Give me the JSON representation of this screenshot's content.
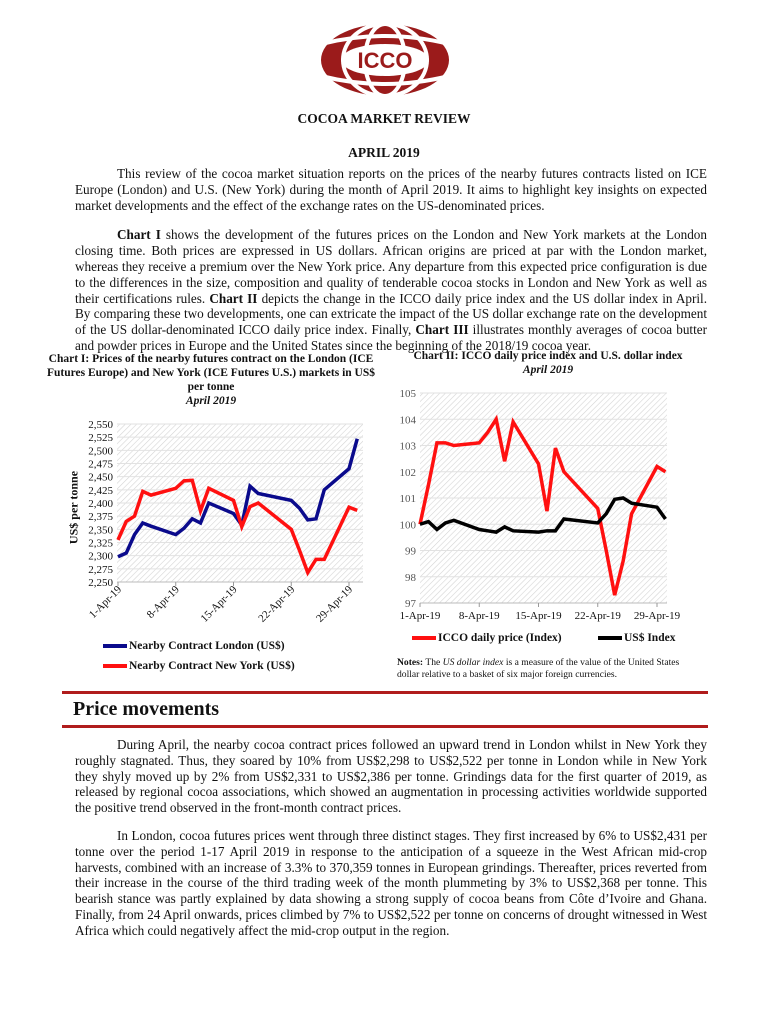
{
  "logo": {
    "text": "ICCO",
    "color": "#9b1b1b"
  },
  "header": {
    "title": "COCOA MARKET REVIEW",
    "date": "APRIL 2019"
  },
  "intro": {
    "p1": "This review of the cocoa market situation reports on the prices of the nearby futures contracts listed on ICE Europe (London) and U.S. (New York) during the month of April 2019. It aims to highlight key insights on expected market developments and the effect of the exchange rates on the US-denominated prices.",
    "p2_parts": [
      {
        "b": "Chart I"
      },
      {
        "t": " shows the development of the futures prices on the London and New York markets at the London closing time. Both prices are expressed in US dollars. African origins are priced at par with the London market, whereas they receive a premium over the New York price. Any departure from this expected price configuration is due to the differences in the size, composition and quality of tenderable cocoa stocks in London and New York as well as their certifications rules. "
      },
      {
        "b": "Chart II"
      },
      {
        "t": " depicts the change in the ICCO daily price index and the US dollar index in April. By comparing these two developments, one can extricate the impact of the US dollar exchange rate on the development of the US dollar-denominated ICCO daily price index. Finally, "
      },
      {
        "b": "Chart III"
      },
      {
        "t": " illustrates monthly averages of cocoa butter and powder prices in Europe and the United States since the beginning of the 2018/19 cocoa year."
      }
    ]
  },
  "chart_data": [
    {
      "type": "line",
      "title": "Chart I: Prices of the nearby futures contract on the London (ICE Futures Europe) and New York (ICE Futures U.S.) markets in US$ per tonne",
      "subtitle": "April 2019",
      "ylabel": "US$ per tonne",
      "xlabel": "",
      "ylim": [
        2250,
        2550
      ],
      "yticks": [
        "2,250",
        "2,275",
        "2,300",
        "2,325",
        "2,350",
        "2,375",
        "2,400",
        "2,425",
        "2,450",
        "2,475",
        "2,500",
        "2,525",
        "2,550"
      ],
      "xticks": [
        "1-Apr-19",
        "8-Apr-19",
        "15-Apr-19",
        "22-Apr-19",
        "29-Apr-19"
      ],
      "x": [
        "1-Apr-19",
        "2-Apr-19",
        "3-Apr-19",
        "4-Apr-19",
        "5-Apr-19",
        "8-Apr-19",
        "9-Apr-19",
        "10-Apr-19",
        "11-Apr-19",
        "12-Apr-19",
        "15-Apr-19",
        "16-Apr-19",
        "17-Apr-19",
        "18-Apr-19",
        "22-Apr-19",
        "23-Apr-19",
        "24-Apr-19",
        "25-Apr-19",
        "26-Apr-19",
        "29-Apr-19",
        "30-Apr-19"
      ],
      "grid": true,
      "legend": "bottom",
      "series": [
        {
          "name": "Nearby Contract London (US$)",
          "color": "#0a0a8c",
          "values": [
            2298,
            2305,
            2340,
            2362,
            2356,
            2340,
            2352,
            2370,
            2362,
            2400,
            2380,
            2358,
            2432,
            2418,
            2405,
            2390,
            2368,
            2370,
            2425,
            2465,
            2522
          ]
        },
        {
          "name": "Nearby Contract New York (US$)",
          "color": "#ff1010",
          "values": [
            2330,
            2365,
            2375,
            2422,
            2415,
            2428,
            2442,
            2443,
            2385,
            2428,
            2405,
            2355,
            2393,
            2400,
            2350,
            2310,
            2268,
            2293,
            2293,
            2392,
            2386
          ]
        }
      ]
    },
    {
      "type": "line",
      "title": "Chart II: ICCO daily price index and U.S. dollar index",
      "subtitle": "April 2019",
      "ylim": [
        97,
        105
      ],
      "yticks": [
        "97",
        "98",
        "99",
        "100",
        "101",
        "102",
        "103",
        "104",
        "105"
      ],
      "xticks": [
        "1-Apr-19",
        "8-Apr-19",
        "15-Apr-19",
        "22-Apr-19",
        "29-Apr-19"
      ],
      "x": [
        "1-Apr-19",
        "2-Apr-19",
        "3-Apr-19",
        "4-Apr-19",
        "5-Apr-19",
        "8-Apr-19",
        "9-Apr-19",
        "10-Apr-19",
        "11-Apr-19",
        "12-Apr-19",
        "15-Apr-19",
        "16-Apr-19",
        "17-Apr-19",
        "18-Apr-19",
        "22-Apr-19",
        "23-Apr-19",
        "24-Apr-19",
        "25-Apr-19",
        "26-Apr-19",
        "29-Apr-19",
        "30-Apr-19"
      ],
      "grid": true,
      "legend": "bottom",
      "series": [
        {
          "name": "ICCO daily price (Index)",
          "color": "#ff1010",
          "values": [
            100.0,
            101.5,
            103.1,
            103.1,
            103.0,
            103.1,
            103.5,
            104.0,
            102.4,
            103.9,
            102.3,
            100.5,
            102.9,
            102.0,
            100.6,
            99.0,
            97.3,
            98.6,
            100.4,
            102.2,
            102.0
          ]
        },
        {
          "name": "US$ Index",
          "color": "#000000",
          "values": [
            100.0,
            100.1,
            99.8,
            100.05,
            100.15,
            99.8,
            99.75,
            99.7,
            99.9,
            99.75,
            99.7,
            99.75,
            99.75,
            100.2,
            100.05,
            100.4,
            100.95,
            101.0,
            100.8,
            100.65,
            100.2
          ]
        }
      ],
      "notes_label": "Notes:",
      "notes_pre": " The ",
      "notes_em": "US dollar index",
      "notes_post": " is a measure of the value of the United States dollar relative to a basket of six major foreign currencies."
    }
  ],
  "section": {
    "heading": "Price movements",
    "p3": "During April, the nearby cocoa contract prices followed an upward trend in London whilst in New York they roughly stagnated. Thus, they soared by 10% from US$2,298 to US$2,522 per tonne in London while in New York they shyly moved up by 2% from US$2,331 to US$2,386 per tonne. Grindings data for the first quarter of 2019, as released by regional cocoa associations, which showed an augmentation in processing activities worldwide supported the positive trend observed in the front-month contract prices.",
    "p4": "In London, cocoa futures prices went through three distinct stages. They first increased by 6% to US$2,431 per tonne over the period 1-17 April 2019 in response to the anticipation of a squeeze in the West African mid-crop harvests, combined with an increase of 3.3% to 370,359 tonnes in European grindings. Thereafter, prices reverted from their increase in the course of the third trading week of the month plummeting by 3% to US$2,368 per tonne. This bearish stance was partly explained by data showing a strong supply of cocoa beans from Côte d’Ivoire and Ghana. Finally, from 24 April onwards, prices climbed by 7% to US$2,522 per tonne on concerns of drought witnessed in West Africa which could negatively affect the mid-crop output in the region."
  }
}
